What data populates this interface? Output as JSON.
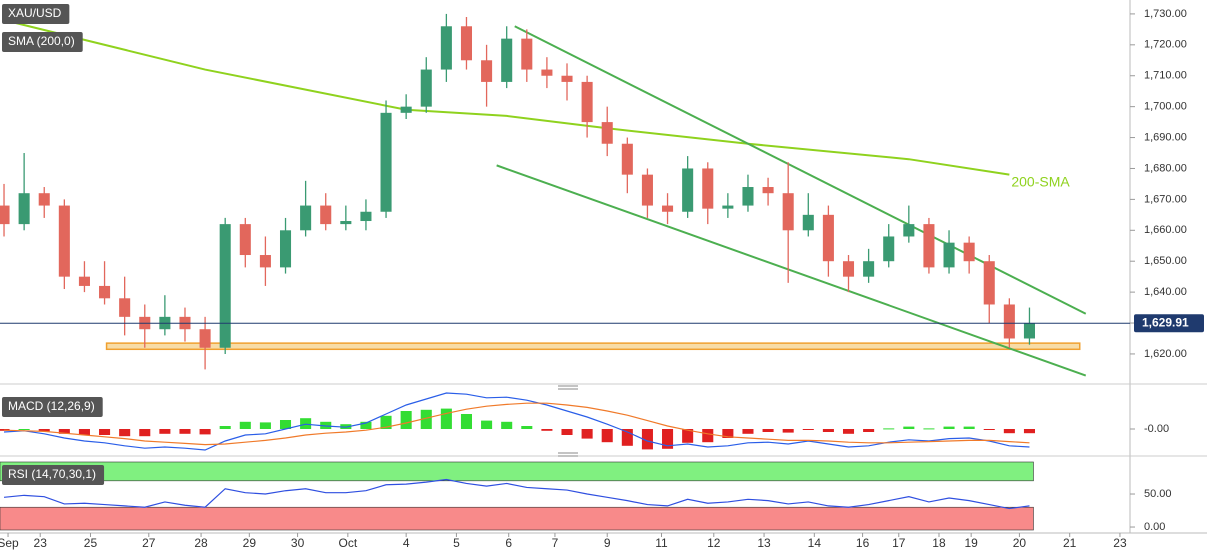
{
  "chart_data": [
    {
      "type": "candlestick",
      "title": "XAU/USD",
      "colors": {
        "up": "#3a9a72",
        "down": "#e2675c"
      },
      "xlim": [
        -0.2,
        56
      ],
      "xticks": [
        {
          "value": 0.2,
          "label": "Sep"
        },
        {
          "value": 1.8,
          "label": "23"
        },
        {
          "value": 4.3,
          "label": "25"
        },
        {
          "value": 7.2,
          "label": "27"
        },
        {
          "value": 9.8,
          "label": "28"
        },
        {
          "value": 12.2,
          "label": "29"
        },
        {
          "value": 14.6,
          "label": "30"
        },
        {
          "value": 17.1,
          "label": "Oct"
        },
        {
          "value": 20,
          "label": "4"
        },
        {
          "value": 22.5,
          "label": "5"
        },
        {
          "value": 25.1,
          "label": "6"
        },
        {
          "value": 27.4,
          "label": "7"
        },
        {
          "value": 30,
          "label": "9"
        },
        {
          "value": 32.7,
          "label": "11"
        },
        {
          "value": 35.3,
          "label": "12"
        },
        {
          "value": 37.8,
          "label": "13"
        },
        {
          "value": 40.3,
          "label": "14"
        },
        {
          "value": 42.7,
          "label": "16"
        },
        {
          "value": 44.5,
          "label": "17"
        },
        {
          "value": 46.5,
          "label": "18"
        },
        {
          "value": 48.1,
          "label": "19"
        },
        {
          "value": 50.5,
          "label": "20"
        },
        {
          "value": 53,
          "label": "21"
        },
        {
          "value": 55.5,
          "label": "23"
        }
      ],
      "ylim": [
        1610.6,
        1734.5
      ],
      "yticks": [
        {
          "value": 1620,
          "label": "1,620.00"
        },
        {
          "value": 1630,
          "label": "1,630.00"
        },
        {
          "value": 1640,
          "label": "1,640.00"
        },
        {
          "value": 1650,
          "label": "1,650.00"
        },
        {
          "value": 1660,
          "label": "1,660.00"
        },
        {
          "value": 1670,
          "label": "1,670.00"
        },
        {
          "value": 1680,
          "label": "1,680.00"
        },
        {
          "value": 1690,
          "label": "1,690.00"
        },
        {
          "value": 1700,
          "label": "1,700.00"
        },
        {
          "value": 1710,
          "label": "1,710.00"
        },
        {
          "value": 1720,
          "label": "1,720.00"
        },
        {
          "value": 1730,
          "label": "1,730.00"
        }
      ],
      "last_label": "1,629.91",
      "ohlc": [
        [
          1668,
          1675,
          1658,
          1662
        ],
        [
          1662,
          1685,
          1660,
          1672
        ],
        [
          1672,
          1674,
          1664,
          1668
        ],
        [
          1668,
          1670,
          1641,
          1645
        ],
        [
          1645,
          1650,
          1640,
          1642
        ],
        [
          1642,
          1650,
          1636,
          1638
        ],
        [
          1638,
          1645,
          1626,
          1632
        ],
        [
          1632,
          1636,
          1622,
          1628
        ],
        [
          1628,
          1639,
          1626,
          1632
        ],
        [
          1632,
          1635,
          1624,
          1628
        ],
        [
          1628,
          1632,
          1615,
          1622
        ],
        [
          1622,
          1664,
          1620,
          1662
        ],
        [
          1662,
          1664,
          1648,
          1652
        ],
        [
          1652,
          1658,
          1642,
          1648
        ],
        [
          1648,
          1664,
          1646,
          1660
        ],
        [
          1660,
          1676,
          1658,
          1668
        ],
        [
          1668,
          1672,
          1660,
          1662
        ],
        [
          1662,
          1668,
          1660,
          1663
        ],
        [
          1663,
          1670,
          1660,
          1666
        ],
        [
          1666,
          1702,
          1664,
          1698
        ],
        [
          1698,
          1704,
          1696,
          1700
        ],
        [
          1700,
          1716,
          1698,
          1712
        ],
        [
          1712,
          1730,
          1708,
          1726
        ],
        [
          1726,
          1729,
          1712,
          1715
        ],
        [
          1715,
          1720,
          1700,
          1708
        ],
        [
          1708,
          1726,
          1706,
          1722
        ],
        [
          1722,
          1725,
          1708,
          1712
        ],
        [
          1712,
          1716,
          1706,
          1710
        ],
        [
          1710,
          1714,
          1702,
          1708
        ],
        [
          1708,
          1710,
          1690,
          1695
        ],
        [
          1695,
          1700,
          1684,
          1688
        ],
        [
          1688,
          1690,
          1672,
          1678
        ],
        [
          1678,
          1680,
          1664,
          1668
        ],
        [
          1668,
          1672,
          1662,
          1666
        ],
        [
          1666,
          1684,
          1664,
          1680
        ],
        [
          1680,
          1682,
          1662,
          1667
        ],
        [
          1667,
          1672,
          1664,
          1668
        ],
        [
          1668,
          1678,
          1666,
          1674
        ],
        [
          1674,
          1677,
          1668,
          1672
        ],
        [
          1672,
          1682,
          1643,
          1660
        ],
        [
          1660,
          1672,
          1658,
          1665
        ],
        [
          1665,
          1668,
          1645,
          1650
        ],
        [
          1650,
          1652,
          1640,
          1645
        ],
        [
          1645,
          1654,
          1643,
          1650
        ],
        [
          1650,
          1662,
          1648,
          1658
        ],
        [
          1658,
          1668,
          1656,
          1662
        ],
        [
          1662,
          1664,
          1646,
          1648
        ],
        [
          1648,
          1660,
          1646,
          1656
        ],
        [
          1656,
          1658,
          1646,
          1650
        ],
        [
          1650,
          1652,
          1630,
          1636
        ],
        [
          1636,
          1638,
          1622,
          1625
        ],
        [
          1625,
          1635,
          1623,
          1629.91
        ]
      ],
      "sma": {
        "name": "SMA (200,0)",
        "color": "#8fd21e",
        "x": [
          0,
          10,
          20,
          25,
          30,
          37,
          45,
          50
        ],
        "values": [
          1728,
          1712,
          1699,
          1697,
          1693,
          1688,
          1683,
          1678
        ]
      },
      "annotation": "200-SMA",
      "trendlines": [
        {
          "color": "#4caf50",
          "x": [
            25.4,
            53.8
          ],
          "values": [
            1726,
            1633
          ]
        },
        {
          "color": "#4caf50",
          "x": [
            24.5,
            53.8
          ],
          "values": [
            1681,
            1613
          ]
        }
      ],
      "support": {
        "color": "#f0a030",
        "x": [
          5.1,
          53.5
        ],
        "values": [
          1621.5,
          1623.5
        ]
      }
    },
    {
      "type": "macd",
      "title": "MACD (12,26,9)",
      "ylim": [
        -4,
        6
      ],
      "yticks": [
        {
          "value": 0,
          "label": "-0.00"
        }
      ],
      "series": [
        {
          "color": "#2a5ee8",
          "values": [
            -0.5,
            -0.3,
            -0.8,
            -1.5,
            -2,
            -2.3,
            -2.8,
            -3.2,
            -3,
            -3.2,
            -3.5,
            -2,
            -1,
            -0.8,
            0,
            0.8,
            0.5,
            0.3,
            1,
            2.5,
            4,
            5,
            6,
            5.8,
            5.2,
            5.3,
            4.8,
            4,
            3,
            2,
            0.8,
            -0.5,
            -2,
            -2.8,
            -2.5,
            -3,
            -2.8,
            -2.3,
            -2.2,
            -2.5,
            -2,
            -2.5,
            -3,
            -2.8,
            -2.2,
            -1.8,
            -2,
            -1.6,
            -1.5,
            -2,
            -2.8,
            -3
          ]
        },
        {
          "color": "#f07a2a",
          "values": [
            -0.2,
            -0.3,
            -0.4,
            -0.7,
            -1,
            -1.3,
            -1.6,
            -2,
            -2.2,
            -2.4,
            -2.6,
            -2.5,
            -2.2,
            -1.9,
            -1.5,
            -1,
            -0.7,
            -0.5,
            -0.2,
            0.3,
            1,
            1.8,
            2.6,
            3.3,
            3.8,
            4.1,
            4.3,
            4.3,
            4,
            3.6,
            3,
            2.3,
            1.4,
            0.5,
            -0.2,
            -0.8,
            -1.3,
            -1.5,
            -1.7,
            -1.9,
            -1.9,
            -2,
            -2.2,
            -2.3,
            -2.3,
            -2.2,
            -2.1,
            -2,
            -1.9,
            -1.9,
            -2.1,
            -2.3
          ]
        }
      ],
      "histogram": {
        "colors": {
          "up": "#33dd33",
          "down": "#e02020"
        },
        "values": [
          -0.3,
          0,
          -0.4,
          -0.8,
          -1,
          -1,
          -1.2,
          -1.2,
          -0.8,
          -0.8,
          -0.9,
          0.5,
          1.2,
          1.1,
          1.5,
          1.8,
          1.2,
          0.8,
          1.2,
          2.2,
          3,
          3.2,
          3.4,
          2.5,
          1.4,
          1.2,
          0.5,
          -0.3,
          -1,
          -1.6,
          -2.2,
          -2.8,
          -3.4,
          -3.3,
          -2.3,
          -2.2,
          -1.5,
          -0.8,
          -0.5,
          -0.6,
          -0.1,
          -0.5,
          -0.8,
          -0.5,
          0.1,
          0.4,
          0.1,
          0.4,
          0.4,
          -0.1,
          -0.7,
          -0.7
        ]
      }
    },
    {
      "type": "rsi",
      "title": "RSI (14,70,30,1)",
      "ylim": [
        -4.5,
        98.5
      ],
      "yticks": [
        {
          "value": 50,
          "label": "50.00"
        },
        {
          "value": 0,
          "label": "0.00"
        }
      ],
      "levels": [
        70,
        30
      ],
      "band_colors": [
        "#80f080",
        "#f88a8a"
      ],
      "color": "#2f4fe0",
      "values": [
        45,
        48,
        46,
        35,
        36,
        34,
        32,
        30,
        38,
        33,
        30,
        58,
        52,
        50,
        55,
        58,
        52,
        52,
        55,
        64,
        65,
        68,
        72,
        66,
        62,
        66,
        60,
        58,
        56,
        50,
        45,
        40,
        34,
        32,
        42,
        36,
        38,
        42,
        40,
        35,
        38,
        32,
        30,
        34,
        40,
        46,
        38,
        44,
        40,
        34,
        28,
        32
      ]
    }
  ]
}
